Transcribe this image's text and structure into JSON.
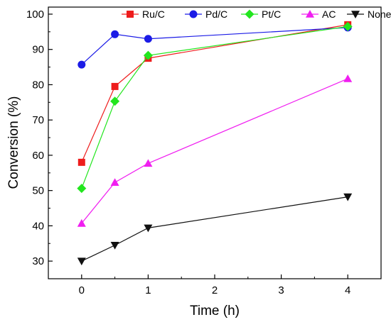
{
  "chart_data": {
    "type": "line",
    "title": "",
    "xlabel": "Time (h)",
    "ylabel": "Conversion (%)",
    "xlim": [
      -0.5,
      4.5
    ],
    "ylim": [
      25,
      102
    ],
    "xticks": [
      0,
      1,
      2,
      3,
      4
    ],
    "yticks": [
      30,
      40,
      50,
      60,
      70,
      80,
      90,
      100
    ],
    "grid": false,
    "legend_position": "top-right",
    "x": [
      0,
      0.5,
      1,
      4
    ],
    "series": [
      {
        "name": "Ru/C",
        "color": "#ee1c1c",
        "marker": "square",
        "values": [
          58.0,
          79.5,
          87.5,
          97.0
        ]
      },
      {
        "name": "Pd/C",
        "color": "#1b1be6",
        "marker": "circle",
        "values": [
          85.7,
          94.3,
          93.0,
          96.2
        ]
      },
      {
        "name": "Pt/C",
        "color": "#22e61e",
        "marker": "diamond",
        "values": [
          50.6,
          75.3,
          88.3,
          96.5
        ]
      },
      {
        "name": "AC",
        "color": "#f01ef0",
        "marker": "triangle-up",
        "values": [
          40.7,
          52.3,
          57.7,
          81.7
        ]
      },
      {
        "name": "None",
        "color": "#111111",
        "marker": "triangle-down",
        "values": [
          30.0,
          34.5,
          39.4,
          48.2
        ]
      }
    ]
  }
}
